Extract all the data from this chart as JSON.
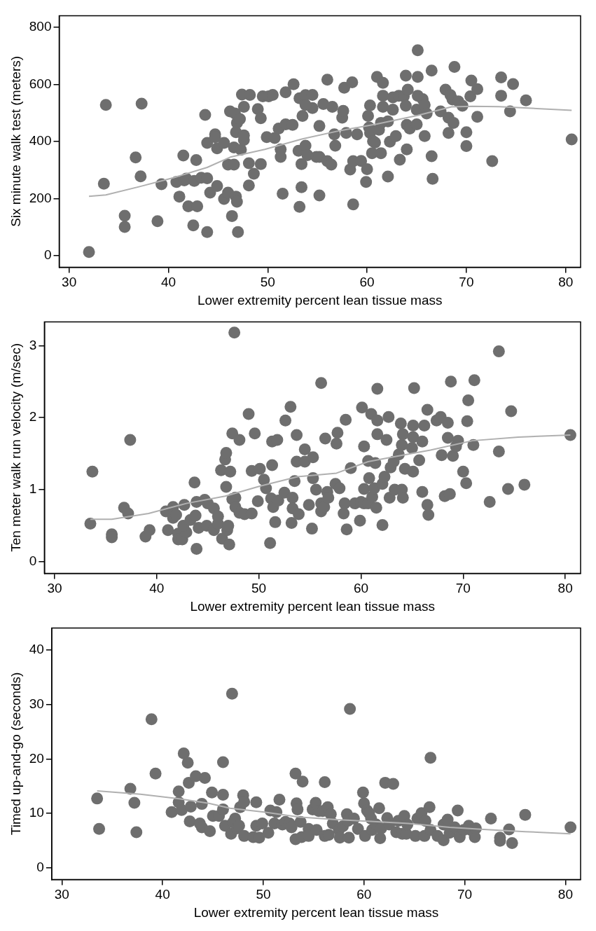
{
  "chart_data": [
    {
      "type": "scatter",
      "xlabel": "Lower extremity percent lean tissue mass",
      "ylabel": "Six minute walk test (meters)",
      "xlim": [
        29,
        81.5
      ],
      "xticks": [
        30,
        40,
        50,
        60,
        70,
        80
      ],
      "ylim": [
        -40,
        840
      ],
      "yticks": [
        0,
        200,
        400,
        600,
        800
      ],
      "series": [
        {
          "marker": "circle",
          "color": "#6e6e6e",
          "x": [
            32.0,
            33.7,
            33.5,
            35.6,
            35.6,
            37.3,
            36.7,
            37.2,
            38.9,
            39.3,
            40.8,
            41.1,
            41.5,
            41.6,
            41.8,
            42.0,
            42.9,
            42.5,
            42.6,
            42.8,
            43.3,
            43.9,
            43.7,
            43.9,
            43.9,
            44.2,
            44.7,
            44.7,
            44.9,
            44.9,
            45.6,
            45.6,
            46.0,
            46.0,
            46.2,
            46.4,
            46.6,
            46.6,
            46.7,
            46.8,
            46.9,
            47.0,
            46.8,
            46.9,
            47.2,
            47.3,
            47.6,
            47.6,
            47.6,
            47.4,
            48.1,
            48.2,
            48.1,
            48.6,
            49.0,
            49.3,
            49.3,
            49.5,
            50.1,
            50.5,
            49.9,
            50.7,
            51.1,
            51.3,
            51.3,
            51.5,
            51.8,
            52.5,
            51.8,
            52.6,
            53.1,
            53.4,
            53.4,
            53.2,
            53.2,
            53.5,
            53.8,
            53.8,
            54.0,
            54.5,
            54.5,
            53.8,
            54.9,
            55.2,
            55.2,
            55.2,
            55.6,
            56.0,
            56.0,
            56.4,
            56.5,
            56.7,
            56.8,
            57.5,
            57.6,
            57.7,
            57.9,
            58.3,
            58.5,
            58.6,
            58.6,
            59.0,
            59.4,
            60.0,
            59.9,
            60.1,
            60.2,
            60.3,
            60.3,
            60.5,
            60.6,
            60.8,
            61.0,
            61.6,
            61.4,
            61.6,
            61.6,
            61.2,
            61.4,
            62.1,
            62.1,
            62.3,
            62.6,
            62.9,
            62.6,
            63.2,
            63.7,
            63.3,
            63.9,
            63.9,
            64.1,
            64.0,
            64.0,
            64.3,
            65.0,
            65.1,
            65.1,
            65.1,
            65.0,
            65.6,
            65.8,
            66.0,
            65.8,
            66.5,
            66.5,
            66.6,
            67.4,
            67.9,
            68.2,
            68.4,
            68.6,
            68.7,
            68.8,
            68.2,
            69.2,
            69.6,
            70.0,
            70.0,
            70.4,
            70.5,
            71.1,
            71.1,
            72.6,
            73.5,
            73.5,
            74.4,
            74.7,
            76.0,
            80.6
          ],
          "values": [
            13,
            528,
            252,
            140,
            101,
            532,
            344,
            278,
            121,
            250,
            258,
            207,
            351,
            264,
            270,
            173,
            173,
            106,
            262,
            335,
            273,
            271,
            493,
            83,
            395,
            221,
            425,
            415,
            376,
            244,
            395,
            199,
            221,
            319,
            505,
            139,
            319,
            379,
            498,
            207,
            189,
            83,
            432,
            465,
            478,
            371,
            405,
            421,
            521,
            564,
            324,
            563,
            246,
            287,
            513,
            481,
            321,
            558,
            558,
            563,
            415,
            412,
            445,
            372,
            346,
            217,
            460,
            458,
            572,
            600,
            367,
            321,
            240,
            171,
            551,
            489,
            562,
            385,
            352,
            563,
            517,
            528,
            346,
            346,
            454,
            211,
            531,
            616,
            331,
            319,
            521,
            425,
            385,
            483,
            507,
            588,
            430,
            302,
            607,
            331,
            180,
            425,
            332,
            303,
            258,
            489,
            449,
            526,
            430,
            359,
            401,
            396,
            626,
            605,
            359,
            521,
            560,
            441,
            465,
            470,
            277,
            399,
            511,
            419,
            554,
            560,
            558,
            336,
            630,
            525,
            581,
            372,
            458,
            445,
            460,
            719,
            626,
            560,
            511,
            548,
            528,
            498,
            419,
            648,
            348,
            269,
            505,
            581,
            483,
            562,
            547,
            465,
            661,
            430,
            540,
            525,
            432,
            384,
            558,
            613,
            583,
            486,
            331,
            624,
            560,
            505,
            601,
            544,
            407
          ]
        },
        {
          "type": "line",
          "color": "#b0b0b0",
          "x": [
            32.0,
            33.7,
            37.1,
            40.5,
            43.9,
            46.3,
            49.7,
            53.5,
            57.3,
            61.0,
            65.1,
            68.5,
            70.6,
            73.3,
            77.1,
            80.6
          ],
          "values": [
            208,
            213,
            242,
            273,
            309,
            346,
            372,
            409,
            438,
            461,
            491,
            521,
            523,
            522,
            515,
            509
          ]
        }
      ]
    },
    {
      "type": "scatter",
      "xlabel": "Lower extremity percent lean tissue mass",
      "ylabel": "Ten meter walk run velocity (m/sec)",
      "xlim": [
        29,
        81.5
      ],
      "xticks": [
        30,
        40,
        50,
        60,
        70,
        80
      ],
      "ylim": [
        -0.16,
        3.33
      ],
      "yticks": [
        0,
        1,
        2,
        3
      ],
      "series": [
        {
          "marker": "circle",
          "color": "#6e6e6e",
          "x": [
            33.5,
            33.7,
            35.6,
            35.6,
            36.8,
            37.2,
            37.4,
            38.9,
            39.3,
            40.9,
            41.1,
            41.6,
            41.6,
            41.9,
            42.1,
            42.1,
            42.5,
            42.9,
            42.6,
            42.7,
            43.3,
            43.7,
            43.9,
            43.8,
            43.9,
            44.1,
            44.7,
            44.9,
            45.0,
            45.6,
            45.6,
            46.0,
            46.0,
            46.3,
            46.4,
            46.7,
            46.8,
            46.8,
            46.9,
            47.0,
            47.1,
            47.2,
            47.4,
            47.6,
            47.4,
            47.7,
            47.7,
            48.1,
            48.1,
            48.6,
            49.0,
            49.3,
            49.3,
            49.6,
            49.9,
            50.1,
            50.5,
            50.7,
            51.1,
            51.2,
            51.3,
            51.3,
            51.4,
            51.6,
            51.8,
            51.9,
            52.5,
            52.6,
            53.1,
            53.2,
            53.3,
            53.3,
            53.5,
            53.7,
            53.7,
            53.9,
            54.5,
            54.5,
            54.9,
            55.2,
            55.3,
            55.3,
            55.6,
            56.1,
            56.1,
            56.1,
            56.4,
            56.5,
            56.7,
            56.8,
            57.5,
            57.6,
            57.7,
            57.9,
            58.3,
            58.4,
            58.5,
            58.6,
            59.0,
            59.4,
            59.9,
            60.0,
            60.1,
            60.3,
            60.3,
            60.3,
            60.7,
            60.7,
            60.8,
            61.0,
            61.1,
            61.3,
            61.4,
            61.5,
            61.6,
            61.6,
            61.6,
            62.1,
            62.1,
            62.3,
            62.5,
            62.7,
            62.8,
            62.9,
            63.2,
            63.3,
            63.7,
            63.9,
            64.0,
            64.1,
            64.0,
            64.1,
            64.3,
            65.0,
            65.1,
            65.1,
            65.2,
            65.1,
            65.7,
            66.0,
            66.0,
            66.2,
            66.5,
            66.5,
            66.6,
            67.4,
            67.8,
            67.9,
            68.2,
            68.5,
            68.5,
            68.7,
            68.8,
            69.0,
            69.3,
            69.5,
            70.0,
            70.3,
            70.4,
            70.5,
            71.0,
            71.1,
            72.6,
            73.5,
            73.5,
            74.4,
            74.7,
            76.0,
            80.5
          ],
          "values": [
            0.53,
            1.25,
            0.38,
            0.34,
            0.75,
            0.67,
            1.69,
            0.35,
            0.44,
            0.7,
            0.44,
            0.76,
            0.61,
            0.65,
            0.39,
            0.31,
            0.31,
            0.41,
            0.5,
            0.79,
            0.58,
            1.1,
            0.18,
            0.64,
            0.83,
            0.47,
            0.86,
            0.5,
            0.81,
            0.44,
            0.74,
            0.63,
            0.53,
            1.27,
            0.32,
            1.42,
            1.51,
            1.04,
            0.44,
            0.5,
            0.24,
            1.25,
            0.87,
            3.18,
            1.78,
            0.89,
            0.76,
            1.69,
            0.68,
            0.66,
            2.05,
            1.26,
            0.67,
            1.78,
            0.84,
            1.29,
            1.14,
            1.02,
            0.26,
            0.88,
            1.67,
            1.34,
            0.76,
            0.55,
            1.69,
            0.85,
            0.96,
            1.96,
            2.15,
            0.54,
            0.89,
            0.74,
            1.12,
            1.76,
            1.39,
            0.66,
            1.39,
            1.56,
            0.79,
            0.46,
            1.45,
            1.16,
            1.0,
            2.48,
            0.81,
            0.7,
            0.76,
            1.71,
            0.97,
            0.89,
            1.08,
            1.64,
            1.79,
            1.02,
            0.67,
            0.81,
            1.97,
            0.45,
            1.3,
            0.81,
            0.57,
            0.83,
            2.14,
            0.81,
            1.6,
            1.01,
            0.81,
            1.4,
            1.16,
            2.05,
            0.9,
            1.02,
            1.37,
            0.75,
            2.4,
            1.96,
            1.77,
            1.08,
            0.51,
            1.18,
            1.69,
            2.01,
            0.89,
            1.31,
            1.39,
            1.0,
            1.49,
            1.92,
            1.62,
            1.77,
            1.0,
            0.89,
            1.29,
            1.58,
            1.89,
            1.25,
            2.41,
            1.73,
            1.41,
            0.97,
            1.67,
            1.89,
            2.11,
            0.79,
            0.65,
            1.96,
            2.01,
            1.48,
            0.91,
            1.93,
            1.72,
            0.94,
            2.5,
            1.47,
            1.6,
            1.68,
            1.25,
            1.09,
            1.95,
            2.24,
            1.62,
            2.52,
            0.83,
            2.92,
            1.53,
            1.01,
            2.09,
            1.07,
            1.76
          ]
        },
        {
          "type": "line",
          "color": "#b0b0b0",
          "x": [
            33.5,
            35.6,
            39.2,
            42.9,
            46.7,
            50.1,
            53.8,
            57.6,
            60.7,
            63.7,
            66.8,
            70.9,
            75.4,
            80.5
          ],
          "values": [
            0.59,
            0.59,
            0.67,
            0.81,
            0.91,
            1.05,
            1.18,
            1.23,
            1.39,
            1.47,
            1.55,
            1.68,
            1.73,
            1.76
          ]
        }
      ]
    },
    {
      "type": "scatter",
      "xlabel": "Lower extremity percent lean tissue mass",
      "ylabel": "Timed up-and-go (seconds)",
      "xlim": [
        29,
        81.5
      ],
      "xticks": [
        30,
        40,
        50,
        60,
        70,
        80
      ],
      "ylim": [
        -2.2,
        44.1
      ],
      "yticks": [
        0,
        10,
        20,
        30,
        40
      ],
      "series": [
        {
          "marker": "circle",
          "color": "#6e6e6e",
          "x": [
            33.5,
            33.7,
            36.8,
            37.2,
            37.4,
            38.9,
            39.3,
            40.9,
            41.6,
            41.6,
            41.9,
            42.1,
            42.5,
            42.6,
            42.8,
            42.7,
            43.3,
            43.7,
            43.9,
            43.9,
            44.2,
            44.7,
            44.9,
            45.0,
            45.6,
            46.0,
            46.0,
            46.0,
            46.2,
            46.9,
            46.8,
            47.0,
            47.2,
            47.4,
            47.6,
            47.7,
            48.0,
            48.1,
            48.1,
            49.0,
            49.3,
            49.3,
            49.6,
            49.9,
            50.5,
            50.7,
            51.1,
            51.3,
            51.6,
            51.9,
            52.2,
            52.6,
            52.8,
            53.2,
            53.2,
            53.3,
            53.4,
            53.7,
            53.8,
            53.9,
            54.5,
            54.5,
            54.9,
            55.2,
            55.3,
            55.5,
            55.9,
            56.1,
            56.1,
            56.4,
            56.5,
            56.7,
            56.9,
            57.5,
            57.6,
            57.9,
            58.3,
            58.4,
            58.5,
            58.6,
            59.0,
            59.4,
            59.9,
            60.0,
            60.1,
            60.3,
            60.5,
            60.7,
            60.8,
            61.2,
            61.5,
            61.6,
            61.7,
            62.1,
            62.3,
            62.5,
            62.9,
            63.2,
            63.4,
            63.8,
            64.0,
            64.2,
            64.3,
            65.1,
            65.3,
            65.7,
            66.0,
            66.1,
            66.5,
            66.6,
            66.6,
            67.3,
            67.9,
            67.9,
            68.3,
            68.5,
            69.0,
            69.3,
            69.5,
            69.9,
            70.4,
            70.6,
            71.0,
            71.1,
            72.6,
            73.5,
            73.5,
            74.4,
            74.7,
            76.0,
            80.5
          ],
          "values": [
            12.7,
            7.1,
            14.5,
            11.9,
            6.5,
            27.3,
            17.3,
            10.2,
            14.0,
            12.0,
            10.6,
            21.0,
            19.3,
            15.6,
            11.2,
            8.5,
            16.8,
            8.1,
            11.7,
            7.4,
            16.5,
            6.7,
            13.8,
            9.5,
            9.5,
            19.4,
            13.4,
            10.7,
            7.7,
            32.0,
            6.2,
            8.3,
            9.0,
            7.2,
            7.7,
            11.1,
            13.3,
            12.1,
            5.8,
            5.6,
            12.0,
            7.7,
            5.5,
            8.1,
            6.4,
            10.5,
            8.1,
            10.2,
            12.5,
            7.9,
            8.4,
            8.1,
            7.4,
            17.3,
            5.2,
            11.8,
            10.7,
            8.4,
            5.6,
            15.8,
            7.1,
            5.8,
            10.7,
            11.9,
            6.9,
            10.4,
            10.4,
            5.8,
            15.7,
            11.1,
            6.0,
            9.8,
            8.1,
            6.9,
            5.5,
            7.6,
            9.8,
            8.6,
            5.5,
            29.2,
            9.0,
            7.1,
            13.8,
            11.8,
            5.8,
            10.5,
            10.0,
            9.0,
            6.9,
            7.9,
            10.9,
            5.4,
            7.2,
            15.6,
            9.1,
            7.9,
            15.4,
            6.5,
            8.6,
            6.2,
            9.5,
            6.2,
            7.9,
            5.8,
            9.0,
            10.0,
            5.8,
            8.6,
            11.1,
            20.2,
            6.9,
            5.8,
            5.0,
            7.9,
            8.8,
            6.4,
            7.4,
            10.5,
            5.6,
            6.9,
            7.7,
            6.9,
            5.6,
            7.2,
            9.0,
            5.5,
            4.9,
            7.0,
            4.5,
            9.7,
            7.4
          ]
        },
        {
          "type": "line",
          "color": "#b0b0b0",
          "x": [
            33.5,
            37.8,
            41.9,
            44.6,
            46.7,
            50.1,
            53.5,
            57.3,
            60.7,
            64.4,
            68.5,
            71.9,
            76.0,
            80.5
          ],
          "values": [
            14.1,
            13.5,
            12.6,
            11.8,
            10.9,
            10.2,
            9.3,
            8.8,
            8.5,
            8.1,
            7.4,
            7.0,
            6.6,
            6.2
          ]
        }
      ]
    }
  ]
}
